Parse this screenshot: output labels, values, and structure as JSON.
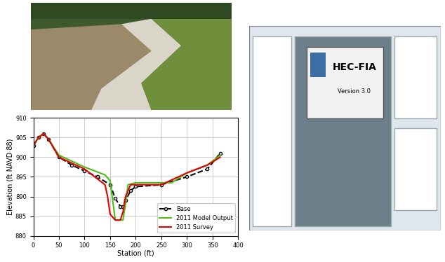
{
  "chart_data": {
    "type": "line",
    "x_label": "Station (ft)",
    "y_label": "Elevation (ft NAVD 88)",
    "xlim": [
      0,
      400
    ],
    "xticks": [
      0,
      50,
      100,
      150,
      200,
      250,
      300,
      350,
      400
    ],
    "ylim": [
      880,
      910
    ],
    "yticks": [
      880,
      885,
      890,
      895,
      900,
      905,
      910
    ],
    "grid": true,
    "legend": "lower right",
    "series": [
      {
        "name": "Base",
        "color": "#000000",
        "marker": "o",
        "line_style": "dashed",
        "x": [
          0,
          10,
          20,
          30,
          50,
          75,
          100,
          125,
          150,
          160,
          170,
          175,
          180,
          190,
          200,
          250,
          300,
          340,
          365
        ],
        "values": [
          903,
          905,
          906,
          904.5,
          900,
          898,
          896.5,
          895,
          893,
          889.5,
          887.5,
          887.5,
          889,
          891.5,
          892.5,
          893,
          895,
          897,
          901
        ]
      },
      {
        "name": "2011 Model Output",
        "color": "#4cbb17",
        "marker": "none",
        "line_style": "solid",
        "x": [
          0,
          10,
          20,
          30,
          50,
          75,
          100,
          140,
          150,
          155,
          160,
          175,
          180,
          185,
          200,
          270,
          300,
          340,
          365
        ],
        "values": [
          903,
          905,
          906,
          904.5,
          900.5,
          899,
          897.5,
          895.5,
          894,
          889,
          884,
          884,
          888,
          893,
          893.5,
          893.5,
          896,
          898,
          900.5
        ]
      },
      {
        "name": "2011 Survey",
        "color": "#e00000",
        "marker": "none",
        "line_style": "solid",
        "x": [
          0,
          10,
          20,
          30,
          50,
          75,
          100,
          140,
          145,
          150,
          160,
          170,
          175,
          180,
          190,
          250,
          300,
          340,
          365
        ],
        "values": [
          903,
          905,
          906,
          904.5,
          900,
          898.5,
          897,
          893,
          890,
          885.5,
          884,
          884,
          886,
          890,
          893,
          893,
          896,
          898,
          900
        ]
      }
    ]
  },
  "screenshot": {
    "title": "HEC-FIA",
    "version": "Version 3.0"
  }
}
